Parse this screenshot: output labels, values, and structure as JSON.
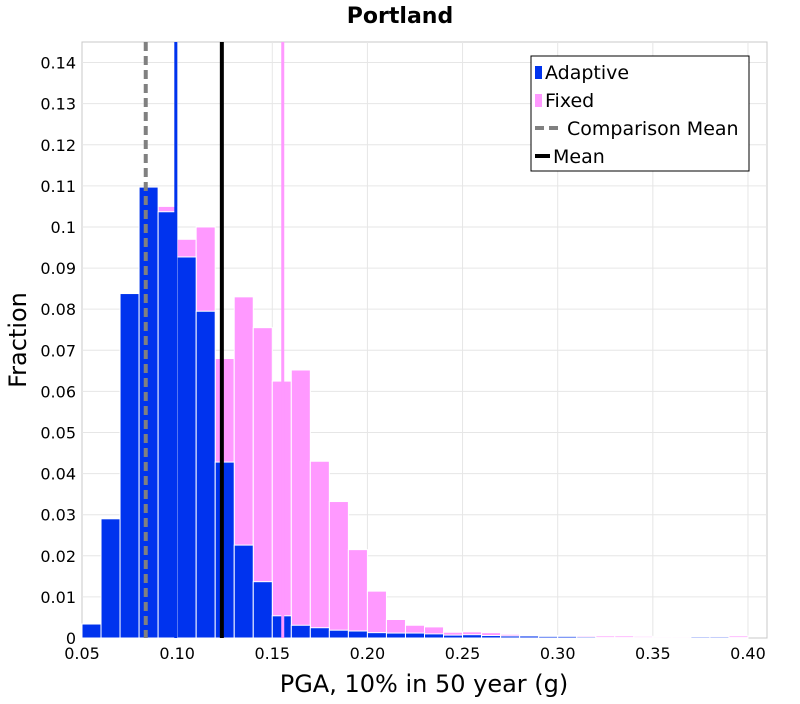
{
  "chart_data": {
    "type": "bar",
    "title": "Portland",
    "xlabel": "PGA, 10% in 50 year (g)",
    "ylabel": "Fraction",
    "xlim": [
      0.05,
      0.41
    ],
    "ylim": [
      0,
      0.145
    ],
    "grid": true,
    "legend_position": "top-right",
    "x_ticks": [
      "0.05",
      "0.10",
      "0.15",
      "0.20",
      "0.25",
      "0.30",
      "0.35",
      "0.40"
    ],
    "y_ticks": [
      "0",
      "0.01",
      "0.02",
      "0.03",
      "0.04",
      "0.05",
      "0.06",
      "0.07",
      "0.08",
      "0.09",
      "0.1",
      "0.11",
      "0.12",
      "0.13",
      "0.14"
    ],
    "bin_width": 0.01,
    "bin_starts": [
      0.05,
      0.06,
      0.07,
      0.08,
      0.09,
      0.1,
      0.11,
      0.12,
      0.13,
      0.14,
      0.15,
      0.16,
      0.17,
      0.18,
      0.19,
      0.2,
      0.21,
      0.22,
      0.23,
      0.24,
      0.25,
      0.26,
      0.27,
      0.28,
      0.29,
      0.3,
      0.31,
      0.32,
      0.33,
      0.34,
      0.35,
      0.36,
      0.37,
      0.38,
      0.39
    ],
    "series": [
      {
        "name": "Fixed",
        "color": "#ff99ff",
        "values": [
          0.0,
          0.0,
          0.0,
          0.0,
          0.105,
          0.097,
          0.1,
          0.068,
          0.083,
          0.0755,
          0.0625,
          0.0652,
          0.043,
          0.0332,
          0.0215,
          0.0114,
          0.0045,
          0.0031,
          0.0027,
          0.0014,
          0.0015,
          0.0013,
          0.0009,
          0.0007,
          0.0006,
          0.0006,
          0.0006,
          0.0005,
          0.0005,
          0.0004,
          0.0003,
          0.0003,
          0.0003,
          0.0005,
          0.0005
        ]
      },
      {
        "name": "Adaptive",
        "color": "#0033ee",
        "values": [
          0.0034,
          0.029,
          0.0838,
          0.1097,
          0.1037,
          0.0927,
          0.0795,
          0.0428,
          0.0226,
          0.0137,
          0.0054,
          0.0031,
          0.0025,
          0.0019,
          0.0017,
          0.0013,
          0.0012,
          0.0012,
          0.001,
          0.0007,
          0.0008,
          0.0006,
          0.0005,
          0.0005,
          0.0004,
          0.0004,
          0.0003,
          0.0001,
          0.0001,
          0.0001,
          0.0001,
          0.0001,
          0.0003,
          0.0003,
          0.0001
        ]
      }
    ],
    "vertical_lines": [
      {
        "name": "Comparison Mean",
        "x": 0.0835,
        "color": "#808080",
        "style": "dashed"
      },
      {
        "name": "Mean",
        "x": 0.1235,
        "color": "#000000",
        "style": "solid"
      },
      {
        "name": "Adaptive peak marker",
        "x": 0.0993,
        "color": "#0033ee",
        "style": "solid"
      },
      {
        "name": "Fixed peak marker",
        "x": 0.1555,
        "color": "#ff99ff",
        "style": "solid"
      }
    ],
    "legend": [
      {
        "label": "Adaptive",
        "type": "box",
        "color": "#0033ee"
      },
      {
        "label": "Fixed",
        "type": "box",
        "color": "#ff99ff"
      },
      {
        "label": "Comparison Mean",
        "type": "dashed",
        "color": "#808080"
      },
      {
        "label": "Mean",
        "type": "solid",
        "color": "#000000"
      }
    ]
  }
}
